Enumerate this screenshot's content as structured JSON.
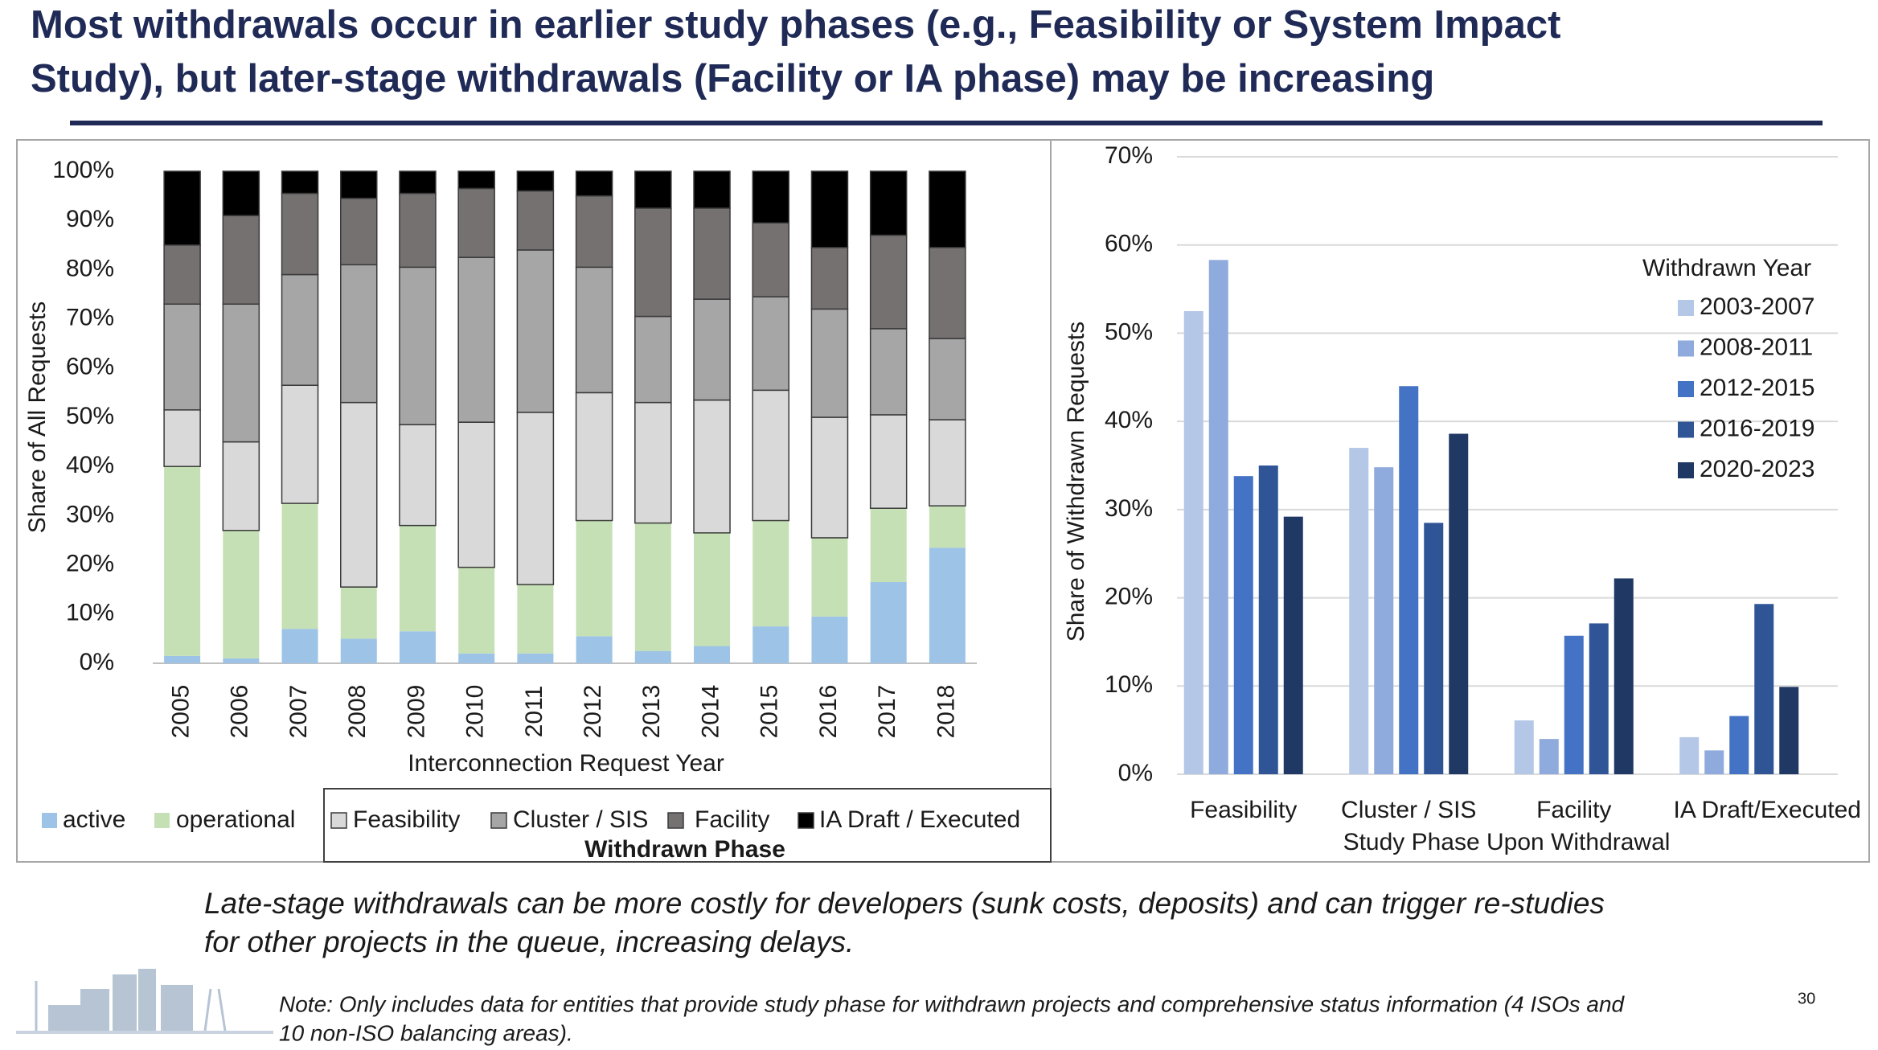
{
  "header": {
    "title_lines": [
      "Most withdrawals occur in earlier study phases (e.g., Feasibility or System Impact",
      "Study), but later-stage withdrawals (Facility or IA phase) may be increasing"
    ]
  },
  "chart_data": [
    {
      "type": "stacked_bar",
      "xlabel": "Interconnection Request Year",
      "ylabel": "Share of All Requests",
      "legend_title": "Withdrawn Phase",
      "categories": [
        "2005",
        "2006",
        "2007",
        "2008",
        "2009",
        "2010",
        "2011",
        "2012",
        "2013",
        "2014",
        "2015",
        "2016",
        "2017",
        "2018"
      ],
      "series": [
        {
          "name": "active",
          "color": "#9dc3e6",
          "values": [
            1.5,
            1,
            7,
            5,
            6.5,
            2,
            2,
            5.5,
            2.5,
            3.5,
            7.5,
            9.5,
            16.5,
            23.5
          ]
        },
        {
          "name": "operational",
          "color": "#c5e0b4",
          "values": [
            38.5,
            26,
            25.5,
            10.5,
            21.5,
            17.5,
            14,
            23.5,
            26,
            23,
            21.5,
            16,
            15,
            8.5
          ]
        },
        {
          "name": "Feasibility",
          "color": "#d9d9d9",
          "values": [
            11.5,
            18,
            24,
            37.5,
            20.5,
            29.5,
            35,
            26,
            24.5,
            27,
            26.5,
            24.5,
            19,
            17.5
          ]
        },
        {
          "name": "Cluster / SIS",
          "color": "#a6a6a6",
          "values": [
            21.5,
            28,
            22.5,
            28,
            32,
            33.5,
            33,
            25.5,
            17.5,
            20.5,
            19,
            22,
            17.5,
            16.5
          ]
        },
        {
          "name": "Facility",
          "color": "#767171",
          "values": [
            12,
            18,
            16.5,
            13.5,
            15,
            14,
            12,
            14.5,
            22,
            18.5,
            15,
            12.5,
            19,
            18.5
          ]
        },
        {
          "name": "IA Draft / Executed",
          "color": "#000000",
          "values": [
            15,
            9,
            4.5,
            5.5,
            4.5,
            3.5,
            4,
            5,
            7.5,
            7.5,
            10.5,
            15.5,
            13,
            15.5
          ]
        }
      ],
      "ylim": [
        0,
        100
      ],
      "yticks": [
        {
          "value": 0,
          "label": "0%"
        },
        {
          "value": 10,
          "label": "10%"
        },
        {
          "value": 20,
          "label": "20%"
        },
        {
          "value": 30,
          "label": "30%"
        },
        {
          "value": 40,
          "label": "40%"
        },
        {
          "value": 50,
          "label": "50%"
        },
        {
          "value": 60,
          "label": "60%"
        },
        {
          "value": 70,
          "label": "70%"
        },
        {
          "value": 80,
          "label": "80%"
        },
        {
          "value": 90,
          "label": "90%"
        },
        {
          "value": 100,
          "label": "100%"
        }
      ],
      "grid": false
    },
    {
      "type": "bar",
      "xlabel": "Study Phase Upon Withdrawal",
      "ylabel": "Share of Withdrawn Requests",
      "legend_title": "Withdrawn Year",
      "categories": [
        "Feasibility",
        "Cluster / SIS",
        "Facility",
        "IA Draft/Executed"
      ],
      "series": [
        {
          "name": "2003-2007",
          "color": "#b4c7e7",
          "values": [
            52.5,
            37,
            6.1,
            4.2
          ]
        },
        {
          "name": "2008-2011",
          "color": "#8faadc",
          "values": [
            58.3,
            34.8,
            4,
            2.7
          ]
        },
        {
          "name": "2012-2015",
          "color": "#4472c4",
          "values": [
            33.8,
            44,
            15.7,
            6.6
          ]
        },
        {
          "name": "2016-2019",
          "color": "#2f5597",
          "values": [
            35,
            28.5,
            17.1,
            19.3
          ]
        },
        {
          "name": "2020-2023",
          "color": "#203864",
          "values": [
            29.2,
            38.6,
            22.2,
            9.9
          ]
        }
      ],
      "ylim": [
        0,
        70
      ],
      "yticks": [
        {
          "value": 0,
          "label": "0%"
        },
        {
          "value": 10,
          "label": "10%"
        },
        {
          "value": 20,
          "label": "20%"
        },
        {
          "value": 30,
          "label": "30%"
        },
        {
          "value": 40,
          "label": "40%"
        },
        {
          "value": 50,
          "label": "50%"
        },
        {
          "value": 60,
          "label": "60%"
        },
        {
          "value": 70,
          "label": "70%"
        }
      ],
      "grid": true
    }
  ],
  "footer": {
    "takeaway_lines": [
      "Late-stage withdrawals can be more costly for developers (sunk costs, deposits) and can trigger re-studies",
      "for other projects in the queue, increasing delays."
    ],
    "note_lines": [
      "Note: Only includes data for entities that provide study phase for withdrawn projects and comprehensive status information (4 ISOs and",
      "10 non-ISO balancing areas)."
    ],
    "page_number": "30"
  }
}
